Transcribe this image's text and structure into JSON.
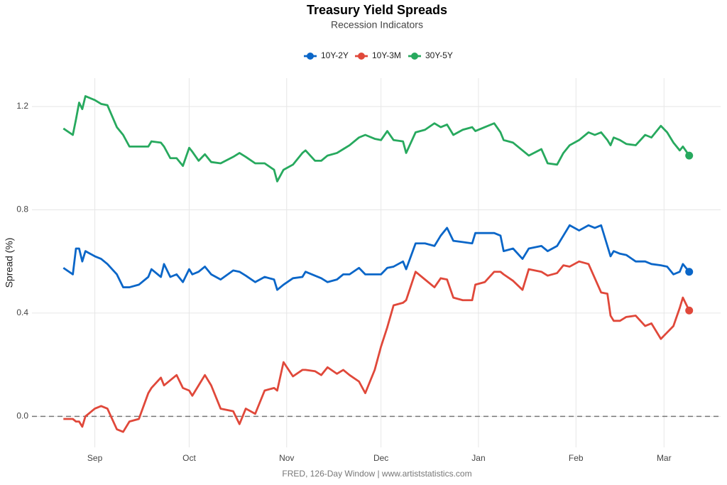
{
  "chart_data": {
    "type": "line",
    "title": "Treasury Yield Spreads",
    "subtitle": "Recession Indicators",
    "caption": "FRED, 126-Day Window | www.artiststatistics.com",
    "y_label": "Spread (%)",
    "grid": true,
    "legend_position": "top",
    "reference_line": 0,
    "xlim": [
      -20,
      199
    ],
    "ylim": [
      -0.12,
      1.31
    ],
    "xticks": [
      {
        "value": 0,
        "label": "Sep"
      },
      {
        "value": 30,
        "label": "Oct"
      },
      {
        "value": 61,
        "label": "Nov"
      },
      {
        "value": 91,
        "label": "Dec"
      },
      {
        "value": 122,
        "label": "Jan"
      },
      {
        "value": 153,
        "label": "Feb"
      },
      {
        "value": 181,
        "label": "Mar"
      }
    ],
    "yticks": [
      {
        "value": 0,
        "label": "0.0"
      },
      0.4,
      0.8,
      1.2
    ],
    "x": [
      -10,
      -7,
      -6,
      -5,
      -4,
      -3,
      0,
      2,
      4,
      7,
      9,
      11,
      14,
      17,
      18,
      21,
      22,
      24,
      26,
      28,
      30,
      31,
      33,
      35,
      37,
      40,
      44,
      46,
      48,
      51,
      54,
      57,
      58,
      60,
      63,
      66,
      67,
      70,
      72,
      74,
      77,
      79,
      81,
      84,
      86,
      89,
      91,
      93,
      95,
      98,
      99,
      102,
      105,
      108,
      110,
      112,
      114,
      117,
      120,
      121,
      124,
      127,
      129,
      130,
      133,
      136,
      138,
      142,
      144,
      147,
      149,
      151,
      154,
      157,
      159,
      161,
      163,
      164,
      165,
      167,
      169,
      172,
      175,
      177,
      180,
      182,
      184,
      186,
      187,
      189
    ],
    "series": [
      {
        "name": "10Y-2Y",
        "color": "#0a66c8",
        "values": [
          0.575,
          0.55,
          0.65,
          0.65,
          0.6,
          0.64,
          0.62,
          0.61,
          0.59,
          0.55,
          0.5,
          0.5,
          0.51,
          0.54,
          0.57,
          0.54,
          0.59,
          0.54,
          0.55,
          0.52,
          0.57,
          0.55,
          0.56,
          0.58,
          0.55,
          0.53,
          0.565,
          0.56,
          0.545,
          0.52,
          0.54,
          0.53,
          0.49,
          0.51,
          0.535,
          0.54,
          0.56,
          0.545,
          0.535,
          0.52,
          0.53,
          0.55,
          0.55,
          0.575,
          0.55,
          0.55,
          0.55,
          0.575,
          0.58,
          0.6,
          0.57,
          0.67,
          0.67,
          0.66,
          0.7,
          0.73,
          0.68,
          0.675,
          0.67,
          0.71,
          0.71,
          0.71,
          0.7,
          0.64,
          0.65,
          0.61,
          0.65,
          0.66,
          0.64,
          0.66,
          0.7,
          0.74,
          0.72,
          0.74,
          0.73,
          0.74,
          0.66,
          0.62,
          0.64,
          0.63,
          0.625,
          0.6,
          0.6,
          0.59,
          0.585,
          0.58,
          0.55,
          0.56,
          0.59,
          0.56
        ]
      },
      {
        "name": "10Y-3M",
        "color": "#e0483a",
        "values": [
          -0.01,
          -0.01,
          -0.02,
          -0.02,
          -0.04,
          0.0,
          0.03,
          0.04,
          0.03,
          -0.05,
          -0.06,
          -0.02,
          -0.01,
          0.09,
          0.11,
          0.15,
          0.12,
          0.14,
          0.16,
          0.11,
          0.1,
          0.08,
          0.12,
          0.16,
          0.12,
          0.03,
          0.02,
          -0.03,
          0.03,
          0.01,
          0.1,
          0.11,
          0.1,
          0.21,
          0.155,
          0.18,
          0.18,
          0.175,
          0.16,
          0.19,
          0.165,
          0.18,
          0.16,
          0.135,
          0.09,
          0.18,
          0.27,
          0.345,
          0.43,
          0.44,
          0.45,
          0.56,
          0.53,
          0.5,
          0.535,
          0.53,
          0.46,
          0.45,
          0.45,
          0.51,
          0.52,
          0.56,
          0.56,
          0.55,
          0.525,
          0.49,
          0.57,
          0.56,
          0.545,
          0.555,
          0.585,
          0.58,
          0.6,
          0.59,
          0.535,
          0.48,
          0.475,
          0.39,
          0.37,
          0.37,
          0.385,
          0.39,
          0.35,
          0.36,
          0.3,
          0.325,
          0.35,
          0.42,
          0.46,
          0.41
        ]
      },
      {
        "name": "30Y-5Y",
        "color": "#27a95e",
        "values": [
          1.115,
          1.09,
          1.15,
          1.215,
          1.19,
          1.24,
          1.225,
          1.21,
          1.205,
          1.12,
          1.09,
          1.045,
          1.045,
          1.045,
          1.065,
          1.06,
          1.045,
          1.0,
          1.0,
          0.97,
          1.04,
          1.025,
          0.99,
          1.015,
          0.985,
          0.98,
          1.005,
          1.02,
          1.005,
          0.98,
          0.98,
          0.955,
          0.91,
          0.955,
          0.975,
          1.02,
          1.03,
          0.99,
          0.99,
          1.01,
          1.02,
          1.035,
          1.05,
          1.08,
          1.09,
          1.075,
          1.07,
          1.105,
          1.07,
          1.065,
          1.02,
          1.1,
          1.11,
          1.135,
          1.12,
          1.13,
          1.09,
          1.11,
          1.12,
          1.105,
          1.12,
          1.135,
          1.1,
          1.07,
          1.06,
          1.03,
          1.01,
          1.035,
          0.98,
          0.975,
          1.02,
          1.05,
          1.07,
          1.1,
          1.09,
          1.1,
          1.07,
          1.05,
          1.08,
          1.07,
          1.055,
          1.05,
          1.09,
          1.08,
          1.125,
          1.1,
          1.06,
          1.03,
          1.045,
          1.01
        ]
      }
    ]
  }
}
